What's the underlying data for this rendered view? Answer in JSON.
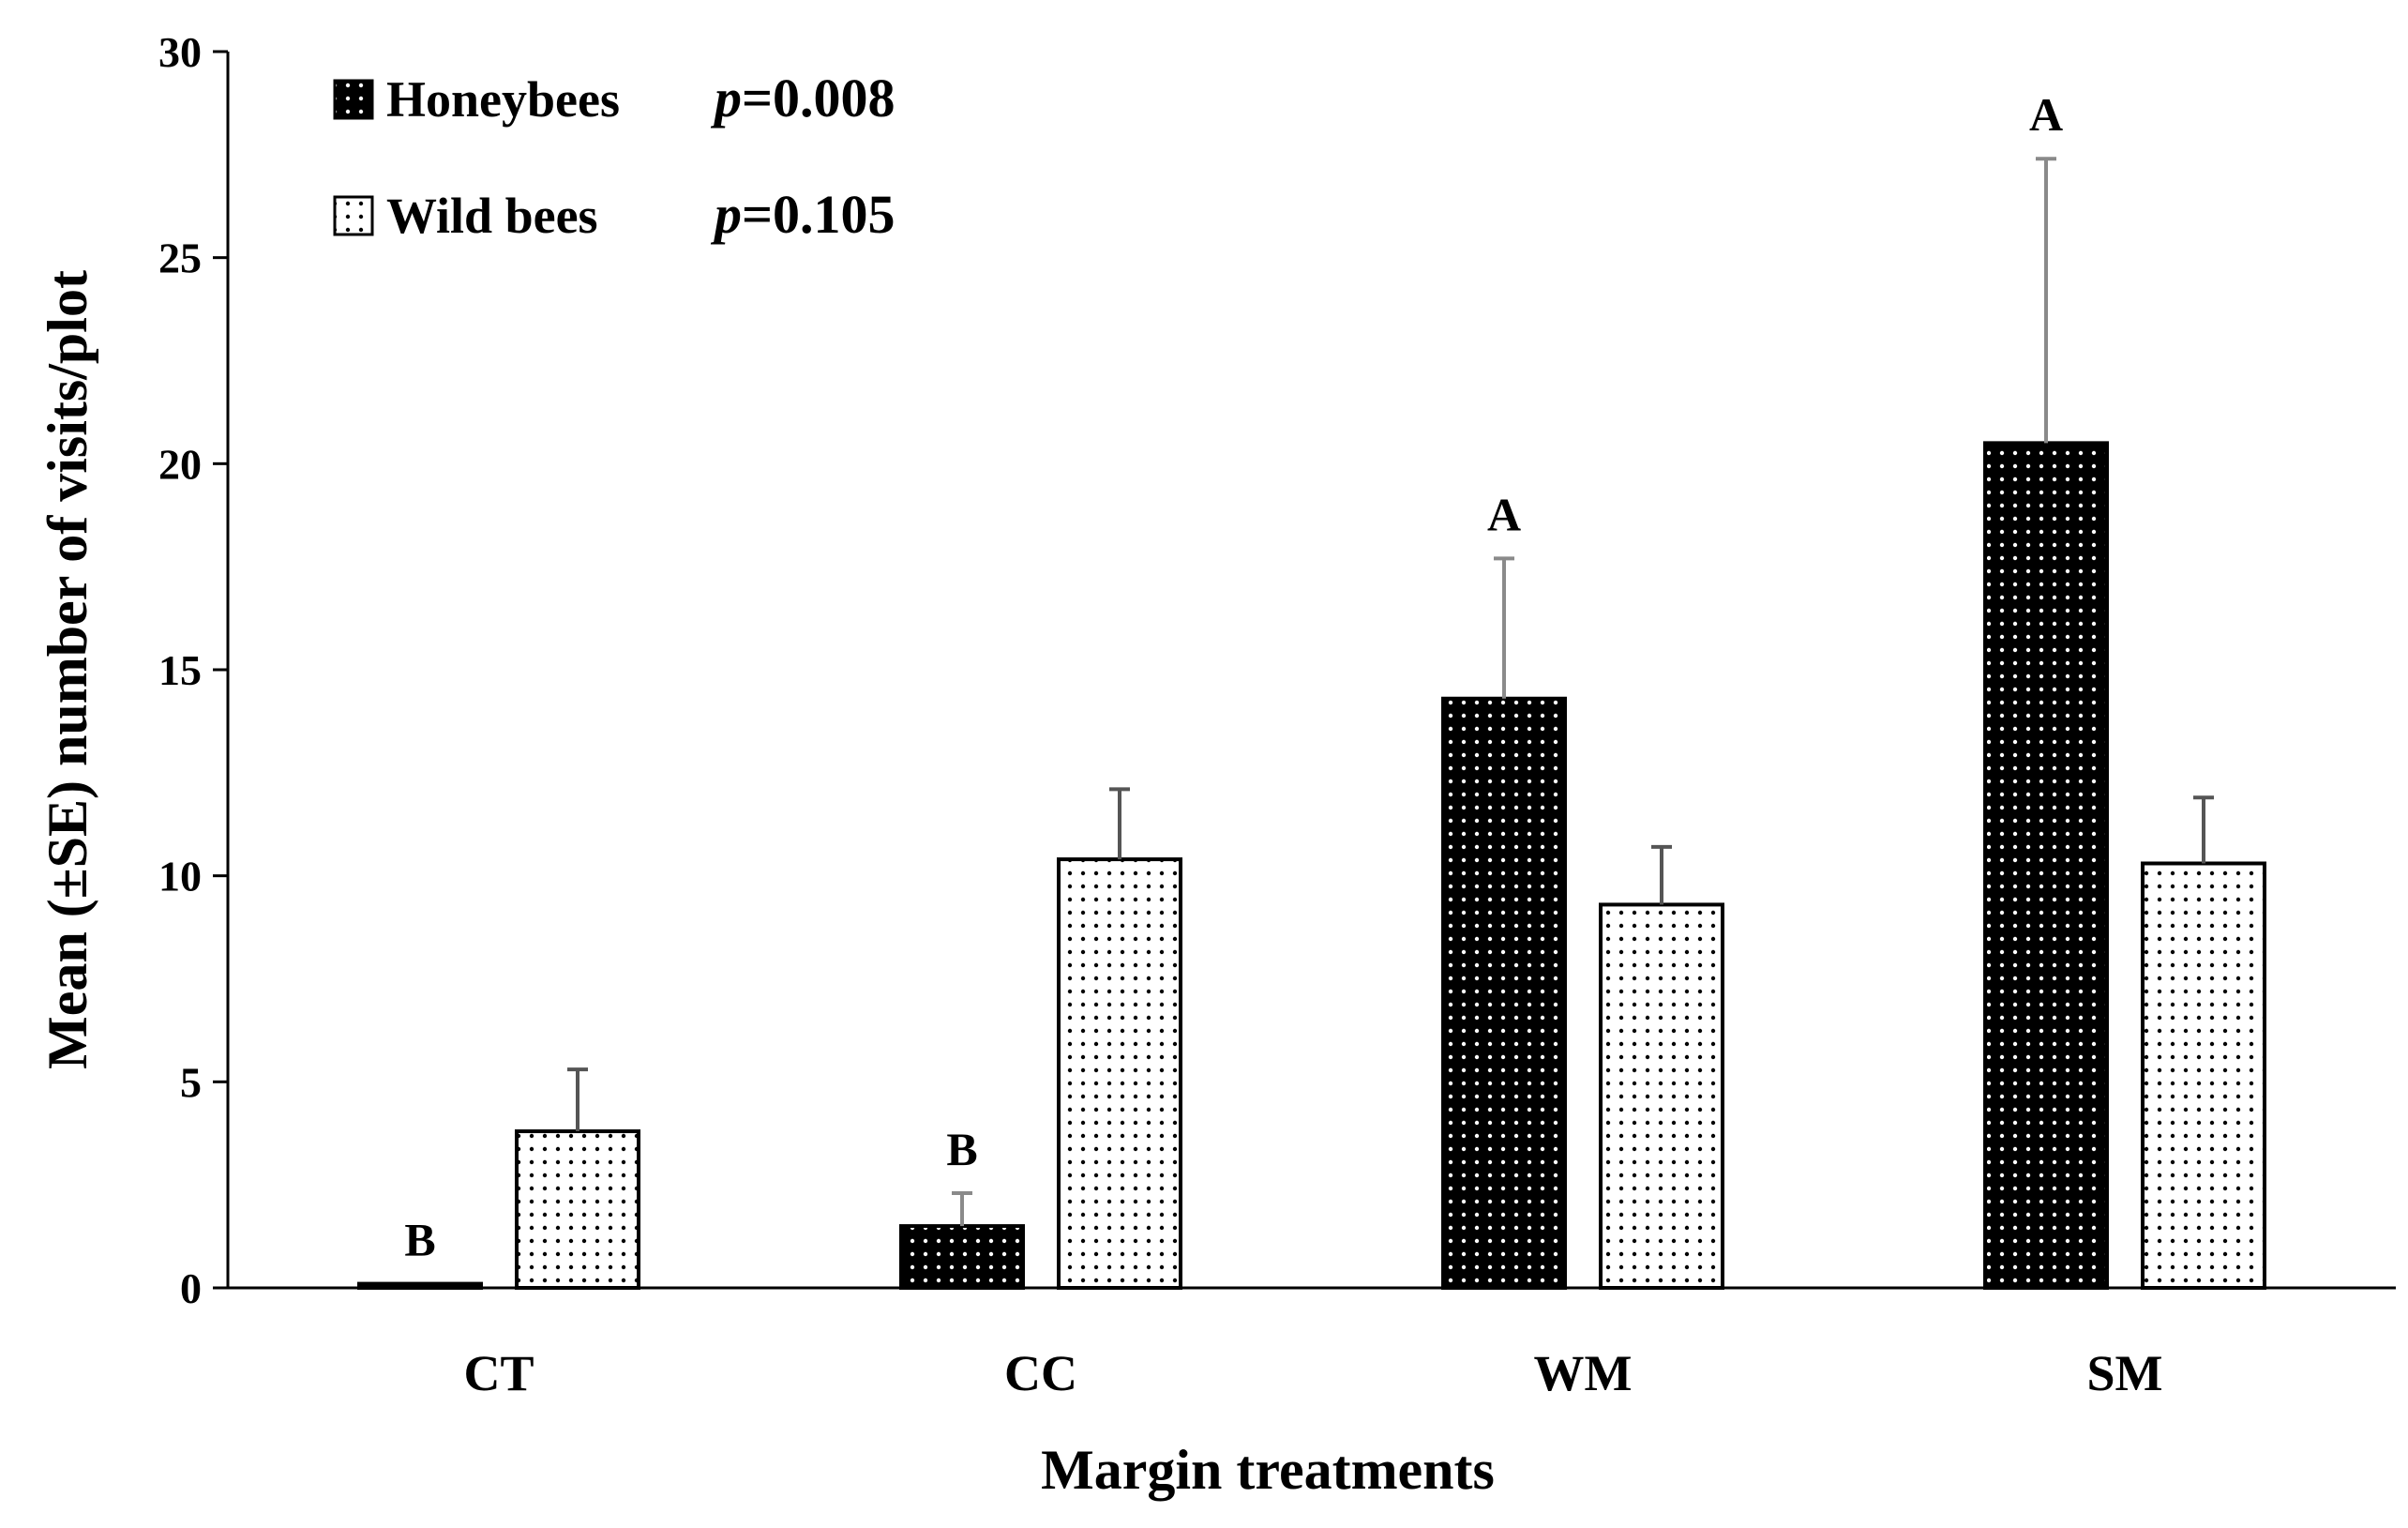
{
  "chart_data": {
    "type": "bar",
    "title": "",
    "xlabel": "Margin treatments",
    "ylabel": "Mean (±SE) number of visits/plot",
    "ylim": [
      0,
      30
    ],
    "yticks": [
      0,
      5,
      10,
      15,
      20,
      25,
      30
    ],
    "categories": [
      "CT",
      "CC",
      "WM",
      "SM"
    ],
    "series": [
      {
        "name": "Honeybees",
        "p_prefix": "p",
        "p_value": "=0.008",
        "fill": "#000000",
        "dot": "#ffffff",
        "values": [
          0.1,
          1.5,
          14.3,
          20.5
        ],
        "se_upper": [
          0.1,
          2.3,
          17.7,
          27.4
        ],
        "sig_letters": [
          "B",
          "B",
          "A",
          "A"
        ]
      },
      {
        "name": "Wild bees",
        "p_prefix": "p",
        "p_value": "=0.105",
        "fill": "#ffffff",
        "dot": "#000000",
        "values": [
          3.8,
          10.4,
          9.3,
          10.3
        ],
        "se_upper": [
          5.3,
          12.1,
          10.7,
          11.9
        ],
        "sig_letters": [
          "",
          "",
          "",
          ""
        ]
      }
    ],
    "legend_position": "top-left",
    "grid": false
  }
}
